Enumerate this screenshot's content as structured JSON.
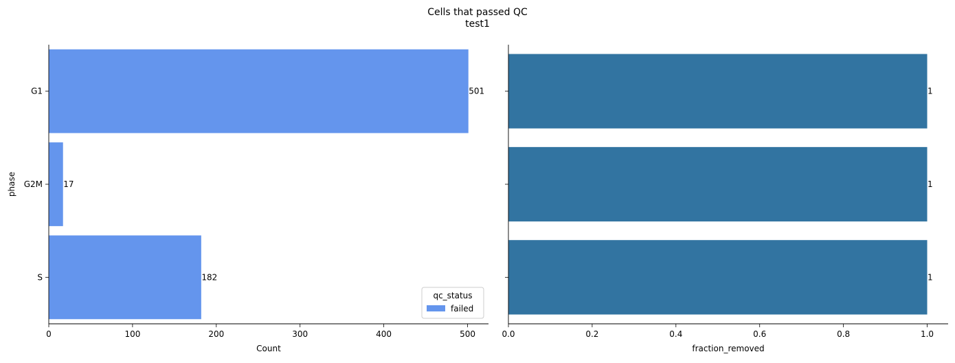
{
  "figure": {
    "title": "Cells that passed QC",
    "subtitle": "test1"
  },
  "chart_data": [
    {
      "type": "bar",
      "orientation": "horizontal",
      "categories": [
        "G1",
        "G2M",
        "S"
      ],
      "series": [
        {
          "name": "failed",
          "values": [
            501,
            17,
            182
          ],
          "color": "#6495ED"
        }
      ],
      "data_labels": [
        "501",
        "17",
        "182"
      ],
      "xlabel": "Count",
      "ylabel": "phase",
      "xlim": [
        0,
        525
      ],
      "xticks": [
        0,
        100,
        200,
        300,
        400,
        500
      ],
      "legend": {
        "title": "qc_status",
        "placement": "bottom-right"
      },
      "grid": false
    },
    {
      "type": "bar",
      "orientation": "horizontal",
      "categories": [
        "G1",
        "G2M",
        "S"
      ],
      "series": [
        {
          "values": [
            1.0,
            1.0,
            1.0
          ],
          "color": "#3274A1"
        }
      ],
      "data_labels": [
        "1",
        "1",
        "1"
      ],
      "xlabel": "fraction_removed",
      "ylabel": "",
      "xlim": [
        0,
        1.05
      ],
      "xticks": [
        0.0,
        0.2,
        0.4,
        0.6,
        0.8,
        1.0
      ],
      "grid": false
    }
  ]
}
